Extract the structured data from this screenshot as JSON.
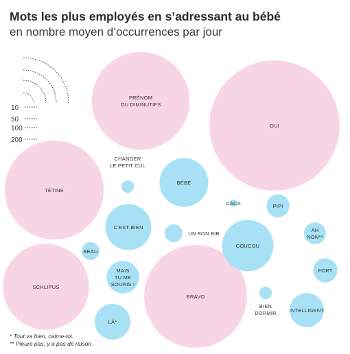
{
  "title": "Mots les plus employés en s’adressant au bébé",
  "subtitle": "en nombre moyen d’occurrences par jour",
  "footnotes": [
    "* Tout va bien, calme-toi.",
    "** Pleure pas, y a pas de raison."
  ],
  "colors": {
    "pink": "#f8d5e4",
    "blue": "#a8e1f5"
  },
  "chart_data": {
    "type": "bubble",
    "title": "Mots les plus employés en s’adressant au bébé",
    "subtitle": "en nombre moyen d’occurrences par jour",
    "size_legend": [
      "10",
      "50",
      "100",
      "200"
    ],
    "series": [
      {
        "word": "PRÉNOM\nOU DIMINUTIFS",
        "value": 180,
        "group": "pink"
      },
      {
        "word": "OUI",
        "value": 320,
        "group": "pink"
      },
      {
        "word": "TÉTINE",
        "value": 185,
        "group": "pink"
      },
      {
        "word": "SCHLIPUS",
        "value": 140,
        "group": "pink"
      },
      {
        "word": "BRAVO",
        "value": 200,
        "group": "pink"
      },
      {
        "word": "CHANGER\nLE PETIT CUL",
        "value": 3,
        "group": "blue",
        "label_outside": true
      },
      {
        "word": "BÉBÉ",
        "value": 45,
        "group": "blue"
      },
      {
        "word": "CACA",
        "value": 1,
        "group": "blue",
        "label_outside": true
      },
      {
        "word": "PIPI",
        "value": 10,
        "group": "blue"
      },
      {
        "word": "C’EST BIEN",
        "value": 40,
        "group": "blue"
      },
      {
        "word": "UN BON BIB",
        "value": 6,
        "group": "blue",
        "label_outside": true
      },
      {
        "word": "COUCOU",
        "value": 50,
        "group": "blue"
      },
      {
        "word": "AH\nNON**",
        "value": 9,
        "group": "blue"
      },
      {
        "word": "BEAU",
        "value": 6,
        "group": "blue"
      },
      {
        "word": "MAIS\nTU ME\nSOURIS !",
        "value": 20,
        "group": "blue"
      },
      {
        "word": "FORT",
        "value": 11,
        "group": "blue"
      },
      {
        "word": "BIEN\nDORMIR",
        "value": 3,
        "group": "blue",
        "label_outside": true
      },
      {
        "word": "INTELLIGENT",
        "value": 22,
        "group": "blue"
      },
      {
        "word": "LÀ*",
        "value": 24,
        "group": "blue"
      }
    ]
  }
}
